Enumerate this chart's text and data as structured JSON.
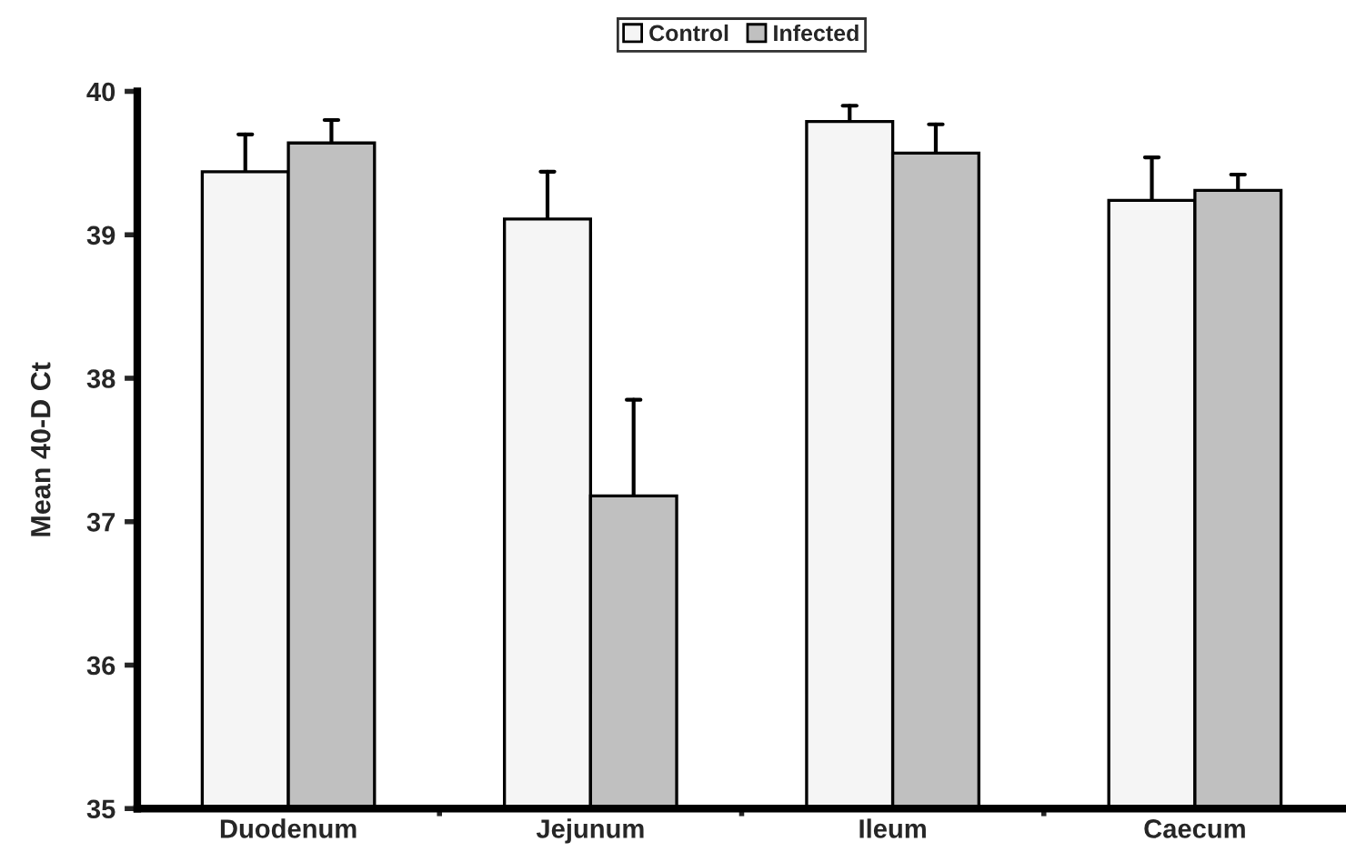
{
  "chart_data": {
    "type": "bar",
    "ylabel": "Mean 40-D Ct",
    "categories": [
      "Duodenum",
      "Jejunum",
      "Ileum",
      "Caecum"
    ],
    "series": [
      {
        "name": "Control",
        "color": "#f5f5f5",
        "values": [
          39.44,
          39.11,
          39.79,
          39.24
        ],
        "errors": [
          [
            39.44,
            39.7
          ],
          [
            39.11,
            39.44
          ],
          [
            39.79,
            39.9
          ],
          [
            39.24,
            39.54
          ]
        ]
      },
      {
        "name": "Infected",
        "color": "#c0c0c0",
        "values": [
          39.64,
          37.18,
          39.57,
          39.31
        ],
        "errors": [
          [
            39.64,
            39.8
          ],
          [
            37.18,
            37.85
          ],
          [
            39.57,
            39.77
          ],
          [
            39.31,
            39.42
          ]
        ]
      }
    ],
    "ylim": [
      35,
      40
    ],
    "yticks": [
      35,
      36,
      37,
      38,
      39,
      40
    ],
    "grid": false,
    "legend": "top"
  }
}
